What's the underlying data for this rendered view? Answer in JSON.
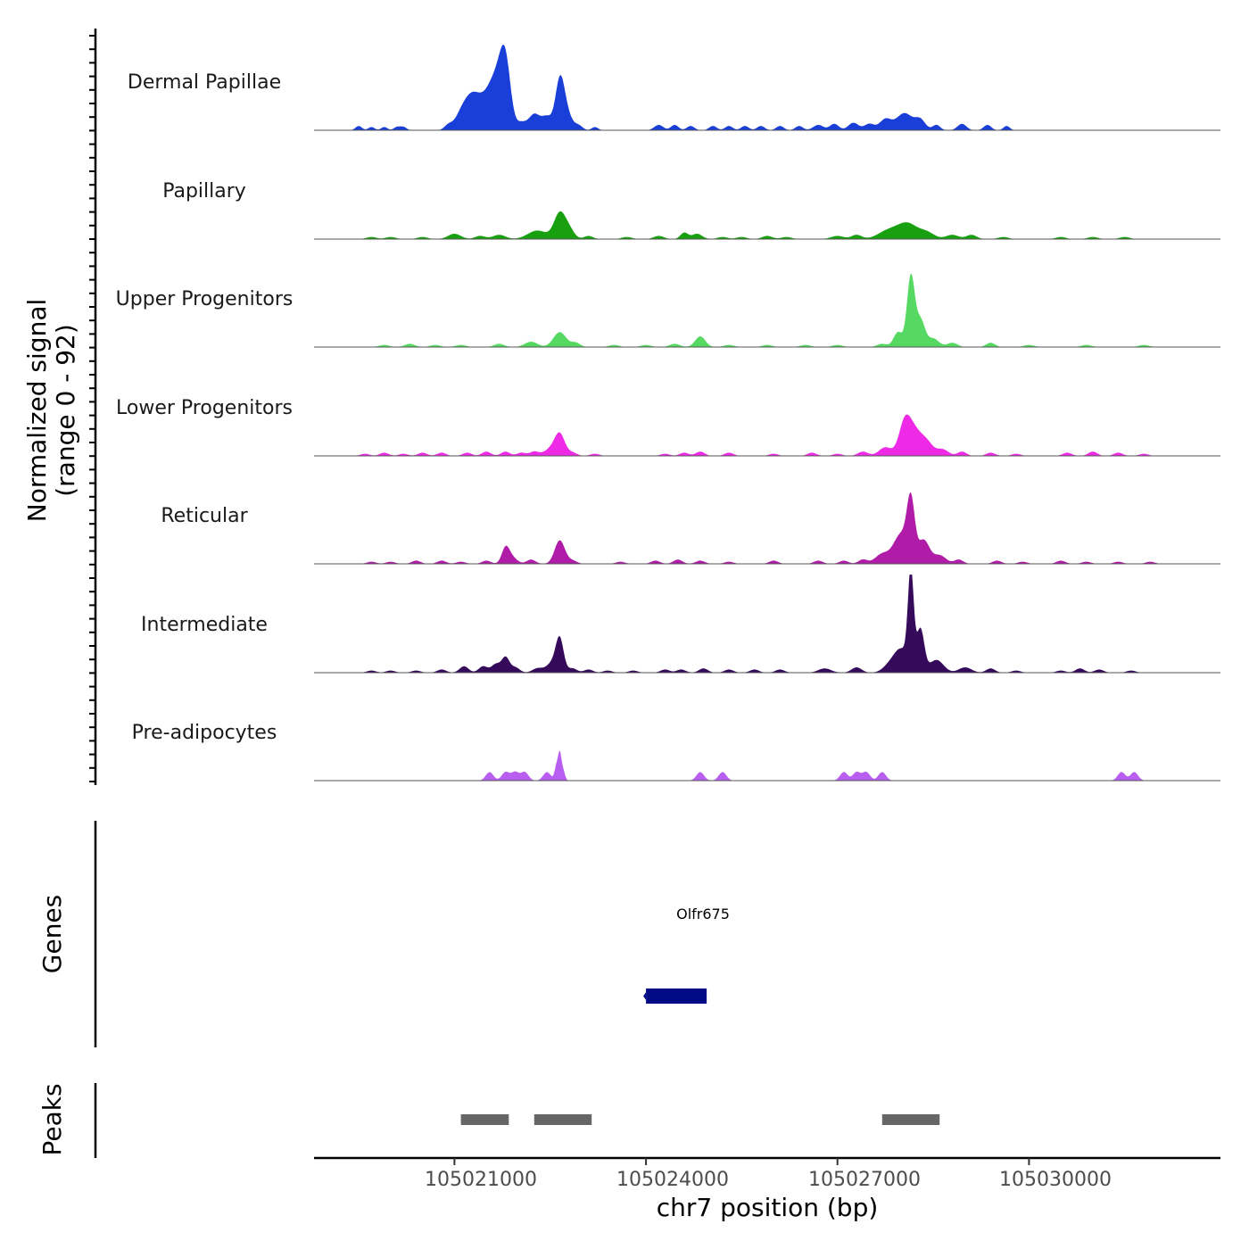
{
  "chart_data": {
    "type": "area",
    "title": "",
    "chromosome": "chr7",
    "xlabel": "chr7 position (bp)",
    "ylabel": "Normalized signal",
    "ylabel_sub": "(range 0 - 92)",
    "xlim": [
      105018800,
      105033000
    ],
    "ylim": [
      0,
      92
    ],
    "x_ticks": [
      105021000,
      105024000,
      105027000,
      105030000
    ],
    "x_tick_labels": [
      "105021000",
      "105024000",
      "105027000",
      "105030000"
    ],
    "tracks": [
      {
        "name": "Dermal Papillae",
        "color": "#1a3ed8",
        "peaks": [
          [
            105019500,
            4,
            50
          ],
          [
            105019700,
            3,
            50
          ],
          [
            105019900,
            3,
            50
          ],
          [
            105020100,
            3,
            50
          ],
          [
            105020200,
            3,
            50
          ],
          [
            105020900,
            4,
            60
          ],
          [
            105021150,
            20,
            120
          ],
          [
            105021300,
            14,
            100
          ],
          [
            105021550,
            34,
            180
          ],
          [
            105021700,
            26,
            110
          ],
          [
            105021800,
            46,
            80
          ],
          [
            105022050,
            6,
            70
          ],
          [
            105022250,
            15,
            90
          ],
          [
            105022450,
            12,
            80
          ],
          [
            105022650,
            42,
            70
          ],
          [
            105022750,
            16,
            90
          ],
          [
            105022950,
            4,
            60
          ],
          [
            105023200,
            3,
            50
          ],
          [
            105024200,
            5,
            70
          ],
          [
            105024450,
            5,
            60
          ],
          [
            105024700,
            4,
            60
          ],
          [
            105025050,
            4,
            60
          ],
          [
            105025300,
            4,
            60
          ],
          [
            105025550,
            4,
            60
          ],
          [
            105025800,
            4,
            60
          ],
          [
            105026100,
            4,
            60
          ],
          [
            105026400,
            4,
            60
          ],
          [
            105026700,
            5,
            80
          ],
          [
            105026950,
            6,
            70
          ],
          [
            105027250,
            7,
            80
          ],
          [
            105027500,
            6,
            80
          ],
          [
            105027750,
            10,
            90
          ],
          [
            105028050,
            16,
            130
          ],
          [
            105028300,
            9,
            80
          ],
          [
            105028550,
            5,
            60
          ],
          [
            105028950,
            6,
            70
          ],
          [
            105029350,
            5,
            60
          ],
          [
            105029650,
            4,
            50
          ]
        ]
      },
      {
        "name": "Papillary",
        "color": "#18a010",
        "peaks": [
          [
            105019700,
            2,
            80
          ],
          [
            105020000,
            2,
            80
          ],
          [
            105020500,
            2,
            80
          ],
          [
            105021000,
            5,
            100
          ],
          [
            105021400,
            3,
            80
          ],
          [
            105021700,
            4,
            100
          ],
          [
            105022300,
            8,
            150
          ],
          [
            105022650,
            24,
            90
          ],
          [
            105022800,
            8,
            80
          ],
          [
            105023100,
            3,
            70
          ],
          [
            105023700,
            2,
            80
          ],
          [
            105024200,
            3,
            80
          ],
          [
            105024600,
            6,
            60
          ],
          [
            105024800,
            5,
            80
          ],
          [
            105025200,
            2,
            80
          ],
          [
            105025500,
            2,
            80
          ],
          [
            105025900,
            3,
            80
          ],
          [
            105026200,
            2,
            80
          ],
          [
            105027000,
            3,
            100
          ],
          [
            105027300,
            4,
            80
          ],
          [
            105027800,
            8,
            160
          ],
          [
            105028100,
            14,
            150
          ],
          [
            105028400,
            6,
            120
          ],
          [
            105028800,
            4,
            100
          ],
          [
            105029100,
            4,
            80
          ],
          [
            105029600,
            2,
            80
          ],
          [
            105030500,
            2,
            80
          ],
          [
            105031000,
            2,
            80
          ],
          [
            105031500,
            2,
            80
          ]
        ]
      },
      {
        "name": "Upper Progenitors",
        "color": "#56d962",
        "peaks": [
          [
            105019900,
            2,
            80
          ],
          [
            105020300,
            3,
            80
          ],
          [
            105020700,
            2,
            80
          ],
          [
            105021100,
            2,
            80
          ],
          [
            105021700,
            3,
            80
          ],
          [
            105022200,
            5,
            100
          ],
          [
            105022650,
            14,
            100
          ],
          [
            105022900,
            4,
            70
          ],
          [
            105023500,
            2,
            80
          ],
          [
            105024000,
            2,
            80
          ],
          [
            105024450,
            3,
            80
          ],
          [
            105024850,
            10,
            80
          ],
          [
            105025300,
            2,
            80
          ],
          [
            105025900,
            2,
            80
          ],
          [
            105026500,
            2,
            80
          ],
          [
            105027000,
            2,
            80
          ],
          [
            105027700,
            3,
            80
          ],
          [
            105027950,
            14,
            70
          ],
          [
            105028150,
            66,
            60
          ],
          [
            105028300,
            25,
            70
          ],
          [
            105028500,
            8,
            90
          ],
          [
            105028800,
            4,
            80
          ],
          [
            105029400,
            4,
            70
          ],
          [
            105030000,
            2,
            80
          ],
          [
            105030900,
            2,
            80
          ],
          [
            105031800,
            2,
            80
          ]
        ]
      },
      {
        "name": "Lower Progenitors",
        "color": "#ee2ae6",
        "peaks": [
          [
            105019600,
            2,
            70
          ],
          [
            105019900,
            3,
            70
          ],
          [
            105020200,
            2,
            70
          ],
          [
            105020500,
            3,
            70
          ],
          [
            105020800,
            3,
            70
          ],
          [
            105021200,
            3,
            70
          ],
          [
            105021500,
            4,
            70
          ],
          [
            105021800,
            4,
            70
          ],
          [
            105022050,
            3,
            70
          ],
          [
            105022250,
            4,
            70
          ],
          [
            105022500,
            6,
            100
          ],
          [
            105022650,
            20,
            80
          ],
          [
            105022850,
            3,
            70
          ],
          [
            105023200,
            2,
            70
          ],
          [
            105024300,
            2,
            70
          ],
          [
            105024600,
            3,
            70
          ],
          [
            105024850,
            4,
            70
          ],
          [
            105025300,
            3,
            70
          ],
          [
            105026000,
            2,
            70
          ],
          [
            105026600,
            3,
            70
          ],
          [
            105027000,
            2,
            70
          ],
          [
            105027400,
            4,
            80
          ],
          [
            105027750,
            8,
            100
          ],
          [
            105028050,
            28,
            90
          ],
          [
            105028200,
            22,
            110
          ],
          [
            105028400,
            12,
            100
          ],
          [
            105028650,
            6,
            90
          ],
          [
            105028950,
            4,
            70
          ],
          [
            105029400,
            3,
            70
          ],
          [
            105029800,
            2,
            70
          ],
          [
            105030600,
            3,
            70
          ],
          [
            105031000,
            4,
            70
          ],
          [
            105031400,
            3,
            70
          ],
          [
            105031800,
            2,
            70
          ]
        ]
      },
      {
        "name": "Reticular",
        "color": "#b01ba8",
        "peaks": [
          [
            105019700,
            2,
            70
          ],
          [
            105020000,
            2,
            70
          ],
          [
            105020400,
            3,
            70
          ],
          [
            105020800,
            3,
            70
          ],
          [
            105021100,
            2,
            70
          ],
          [
            105021500,
            3,
            70
          ],
          [
            105021800,
            14,
            60
          ],
          [
            105021900,
            6,
            80
          ],
          [
            105022200,
            4,
            70
          ],
          [
            105022650,
            22,
            80
          ],
          [
            105022850,
            3,
            70
          ],
          [
            105023600,
            2,
            70
          ],
          [
            105024150,
            3,
            70
          ],
          [
            105024500,
            4,
            70
          ],
          [
            105024850,
            3,
            70
          ],
          [
            105025300,
            2,
            70
          ],
          [
            105026000,
            3,
            70
          ],
          [
            105026700,
            3,
            70
          ],
          [
            105027100,
            3,
            70
          ],
          [
            105027400,
            4,
            70
          ],
          [
            105027700,
            9,
            110
          ],
          [
            105028000,
            28,
            120
          ],
          [
            105028150,
            52,
            60
          ],
          [
            105028350,
            22,
            90
          ],
          [
            105028600,
            8,
            100
          ],
          [
            105028900,
            4,
            70
          ],
          [
            105029500,
            3,
            70
          ],
          [
            105029900,
            2,
            70
          ],
          [
            105030500,
            3,
            70
          ],
          [
            105030900,
            2,
            70
          ],
          [
            105031400,
            2,
            70
          ],
          [
            105031900,
            2,
            70
          ]
        ]
      },
      {
        "name": "Intermediate",
        "color": "#360a5a",
        "peaks": [
          [
            105019700,
            2,
            70
          ],
          [
            105020000,
            2,
            70
          ],
          [
            105020400,
            2,
            70
          ],
          [
            105020800,
            3,
            70
          ],
          [
            105021150,
            6,
            70
          ],
          [
            105021450,
            6,
            70
          ],
          [
            105021650,
            8,
            70
          ],
          [
            105021800,
            14,
            60
          ],
          [
            105021950,
            5,
            70
          ],
          [
            105022300,
            4,
            80
          ],
          [
            105022550,
            10,
            100
          ],
          [
            105022650,
            28,
            60
          ],
          [
            105022850,
            4,
            70
          ],
          [
            105023100,
            3,
            70
          ],
          [
            105023400,
            2,
            70
          ],
          [
            105023800,
            2,
            70
          ],
          [
            105024300,
            3,
            70
          ],
          [
            105024550,
            3,
            70
          ],
          [
            105024900,
            4,
            70
          ],
          [
            105025300,
            3,
            70
          ],
          [
            105025700,
            3,
            70
          ],
          [
            105026100,
            3,
            70
          ],
          [
            105026800,
            4,
            100
          ],
          [
            105027300,
            5,
            80
          ],
          [
            105027800,
            5,
            100
          ],
          [
            105028000,
            22,
            120
          ],
          [
            105028150,
            88,
            45
          ],
          [
            105028300,
            40,
            60
          ],
          [
            105028550,
            12,
            110
          ],
          [
            105029000,
            5,
            100
          ],
          [
            105029400,
            4,
            70
          ],
          [
            105029800,
            2,
            70
          ],
          [
            105030500,
            2,
            70
          ],
          [
            105030800,
            4,
            70
          ],
          [
            105031100,
            3,
            70
          ],
          [
            105031600,
            2,
            70
          ]
        ]
      },
      {
        "name": "Pre-adipocytes",
        "color": "#b85ef0",
        "peaks": [
          [
            105021550,
            8,
            60
          ],
          [
            105021800,
            8,
            60
          ],
          [
            105021950,
            8,
            60
          ],
          [
            105022100,
            8,
            60
          ],
          [
            105022450,
            8,
            60
          ],
          [
            105022600,
            14,
            30
          ],
          [
            105022650,
            22,
            25
          ],
          [
            105022700,
            10,
            30
          ],
          [
            105024850,
            8,
            60
          ],
          [
            105025200,
            8,
            60
          ],
          [
            105027100,
            8,
            60
          ],
          [
            105027300,
            8,
            60
          ],
          [
            105027450,
            8,
            60
          ],
          [
            105027700,
            8,
            60
          ],
          [
            105031450,
            8,
            60
          ],
          [
            105031650,
            8,
            60
          ]
        ]
      }
    ],
    "genes": {
      "title": "Genes",
      "items": [
        {
          "name": "Olfr675",
          "start": 105024000,
          "end": 105024950,
          "color": "#030a85"
        }
      ]
    },
    "peaks_track": {
      "title": "Peaks",
      "color": "#666666",
      "items": [
        [
          105021100,
          105021850
        ],
        [
          105022250,
          105023150
        ],
        [
          105027700,
          105028600
        ]
      ]
    }
  }
}
